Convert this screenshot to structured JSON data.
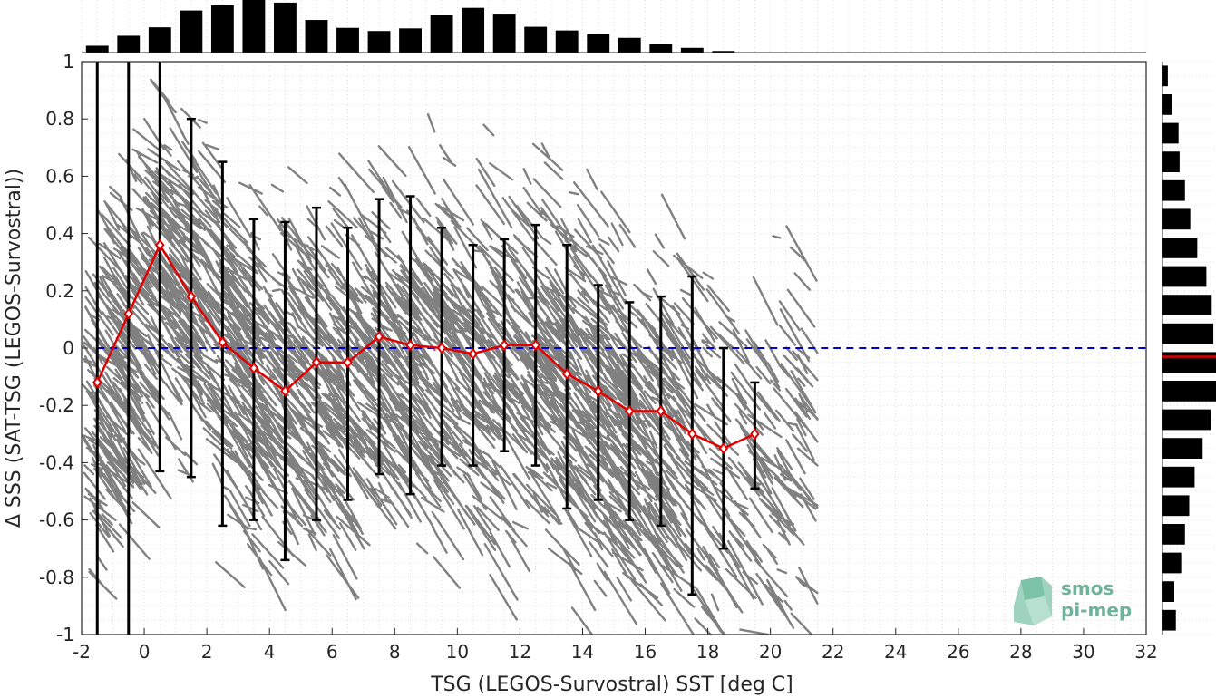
{
  "chart_data": [
    {
      "type": "scatter",
      "name": "main",
      "xlabel": "TSG (LEGOS-Survostral) SST [deg C]",
      "ylabel": "Δ SSS (SAT-TSG (LEGOS-Survostral))",
      "xlim": [
        -2,
        32
      ],
      "ylim": [
        -1,
        1
      ],
      "x_ticks": [
        -2,
        0,
        2,
        4,
        6,
        8,
        10,
        12,
        14,
        16,
        18,
        20,
        22,
        24,
        26,
        28,
        30,
        32
      ],
      "y_ticks": [
        1,
        0.8,
        0.6,
        0.4,
        0.2,
        0,
        -0.2,
        -0.4,
        -0.6,
        -0.8,
        -1
      ],
      "grid": true,
      "scatter_color": "#808080",
      "mean_series": {
        "color": "#e00000",
        "x": [
          -1.5,
          -0.5,
          0.5,
          1.5,
          2.5,
          3.5,
          4.5,
          5.5,
          6.5,
          7.5,
          8.5,
          9.5,
          10.5,
          11.5,
          12.5,
          13.5,
          14.5,
          15.5,
          16.5,
          17.5,
          18.5,
          19.5
        ],
        "mean": [
          -0.12,
          0.12,
          0.36,
          0.18,
          0.02,
          -0.07,
          -0.15,
          -0.05,
          -0.05,
          0.04,
          0.01,
          0.0,
          -0.02,
          0.01,
          0.01,
          -0.09,
          -0.15,
          -0.22,
          -0.22,
          -0.3,
          -0.35,
          -0.3
        ],
        "upper": [
          1.0,
          1.0,
          1.0,
          0.8,
          0.65,
          0.45,
          0.44,
          0.49,
          0.42,
          0.52,
          0.53,
          0.42,
          0.36,
          0.38,
          0.43,
          0.36,
          0.22,
          0.16,
          0.18,
          0.25,
          0.0,
          -0.12
        ],
        "lower": [
          -1.0,
          -1.0,
          -0.43,
          -0.45,
          -0.62,
          -0.6,
          -0.74,
          -0.6,
          -0.53,
          -0.44,
          -0.51,
          -0.41,
          -0.41,
          -0.36,
          -0.41,
          -0.56,
          -0.53,
          -0.6,
          -0.62,
          -0.86,
          -0.7,
          -0.49
        ]
      },
      "reference_line": {
        "y": 0,
        "color": "#0000cc",
        "style": "dashed"
      }
    },
    {
      "type": "bar",
      "name": "top-histogram",
      "orientation": "vertical",
      "x": [
        -1.5,
        -0.5,
        0.5,
        1.5,
        2.5,
        3.5,
        4.5,
        5.5,
        6.5,
        7.5,
        8.5,
        9.5,
        10.5,
        11.5,
        12.5,
        13.5,
        14.5,
        15.5,
        16.5,
        17.5,
        18.5
      ],
      "values": [
        0.13,
        0.32,
        0.48,
        0.8,
        0.9,
        1.0,
        0.95,
        0.62,
        0.47,
        0.41,
        0.46,
        0.72,
        0.85,
        0.74,
        0.49,
        0.42,
        0.35,
        0.28,
        0.17,
        0.09,
        0.03
      ],
      "color": "#000000"
    },
    {
      "type": "bar",
      "name": "right-histogram",
      "orientation": "horizontal",
      "y": [
        0.95,
        0.85,
        0.75,
        0.65,
        0.55,
        0.45,
        0.35,
        0.25,
        0.15,
        0.05,
        -0.05,
        -0.15,
        -0.25,
        -0.35,
        -0.45,
        -0.55,
        -0.65,
        -0.75,
        -0.85,
        -0.95
      ],
      "values": [
        0.1,
        0.18,
        0.3,
        0.32,
        0.42,
        0.52,
        0.65,
        0.82,
        0.92,
        0.95,
        1.0,
        1.0,
        0.9,
        0.75,
        0.6,
        0.5,
        0.42,
        0.35,
        0.22,
        0.25
      ],
      "mean_marker": {
        "y": -0.03,
        "color": "#e00000"
      },
      "color": "#000000"
    }
  ],
  "logo": {
    "line1": "smos",
    "line2": "pi-mep"
  }
}
